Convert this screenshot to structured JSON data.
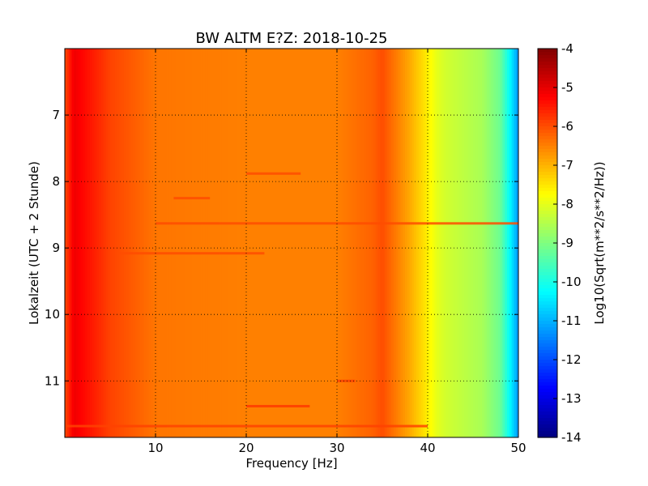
{
  "chart_data": {
    "type": "heatmap",
    "title": "BW ALTM E?Z: 2018-10-25",
    "xlabel": "Frequency [Hz]",
    "ylabel": "Lokalzeit (UTC + 2 Stunde)",
    "xlim": [
      0,
      50
    ],
    "ylim": [
      11.85,
      6.0
    ],
    "x_ticks": [
      10,
      20,
      30,
      40,
      50
    ],
    "y_ticks": [
      7,
      8,
      9,
      10,
      11
    ],
    "grid": true,
    "colormap": "jet",
    "colorbar": {
      "label": "Log10(Sqrt(m**2/s**2/Hz))",
      "range": [
        -14,
        -4
      ],
      "ticks": [
        -4,
        -5,
        -6,
        -7,
        -8,
        -9,
        -10,
        -11,
        -12,
        -13,
        -14
      ]
    },
    "spectrum_profile": {
      "frequency_hz": [
        0,
        1,
        3,
        5,
        10,
        20,
        30,
        34,
        35,
        36,
        38,
        40,
        41,
        42,
        44,
        46,
        48,
        49,
        50
      ],
      "log10_amplitude": [
        -6.0,
        -5.1,
        -5.5,
        -5.9,
        -6.4,
        -6.5,
        -6.5,
        -6.2,
        -6.0,
        -6.3,
        -6.9,
        -7.6,
        -8.0,
        -8.2,
        -8.4,
        -8.6,
        -9.2,
        -10.2,
        -11.3
      ]
    },
    "highlight_bands": [
      {
        "time_h": 8.63,
        "f_from": 10,
        "f_to": 50,
        "log10_amplitude": -6.0
      },
      {
        "time_h": 9.08,
        "f_from": 6,
        "f_to": 22,
        "log10_amplitude": -6.0
      },
      {
        "time_h": 7.88,
        "f_from": 20,
        "f_to": 26,
        "log10_amplitude": -6.0
      },
      {
        "time_h": 8.25,
        "f_from": 12,
        "f_to": 16,
        "log10_amplitude": -6.0
      },
      {
        "time_h": 11.38,
        "f_from": 20,
        "f_to": 27,
        "log10_amplitude": -5.8
      },
      {
        "time_h": 11.68,
        "f_from": 0,
        "f_to": 40,
        "log10_amplitude": -5.9
      },
      {
        "time_h": 11.0,
        "f_from": 30,
        "f_to": 32,
        "log10_amplitude": -5.9
      }
    ]
  }
}
